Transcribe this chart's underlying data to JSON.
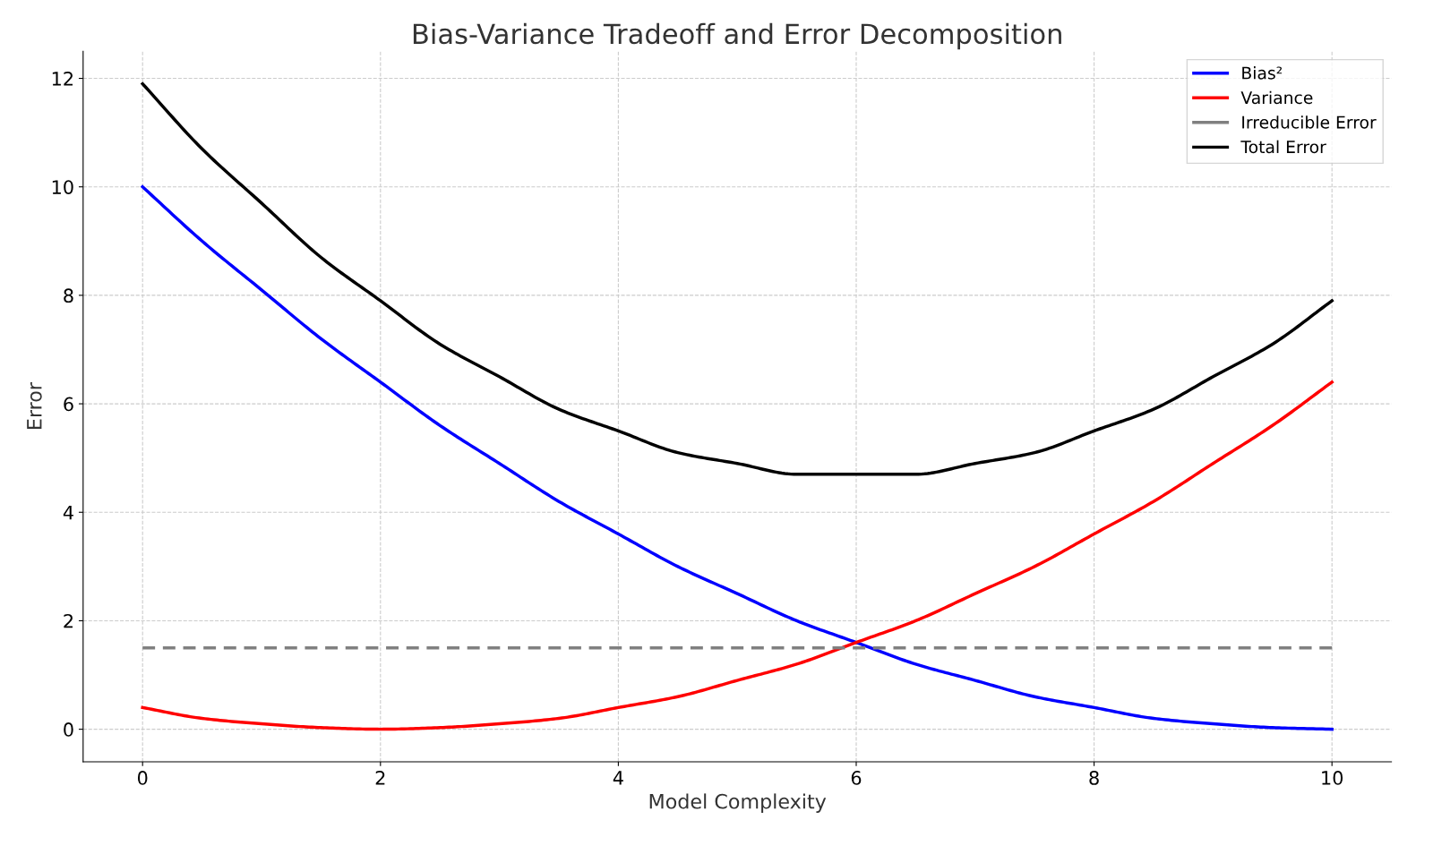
{
  "chart_data": {
    "type": "line",
    "title": "Bias-Variance Tradeoff and Error Decomposition",
    "xlabel": "Model Complexity",
    "ylabel": "Error",
    "x": [
      0,
      0.5,
      1,
      1.5,
      2,
      2.5,
      3,
      3.5,
      4,
      4.5,
      5,
      5.5,
      6,
      6.5,
      7,
      7.5,
      8,
      8.5,
      9,
      9.5,
      10
    ],
    "series": [
      {
        "name": "Bias²",
        "color": "#0000ff",
        "values": [
          10,
          9.0,
          8.1,
          7.2,
          6.4,
          5.6,
          4.9,
          4.2,
          3.6,
          3.0,
          2.5,
          2.0,
          1.6,
          1.2,
          0.9,
          0.6,
          0.4,
          0.2,
          0.1,
          0.03,
          0
        ]
      },
      {
        "name": "Variance",
        "color": "#ff0000",
        "values": [
          0.4,
          0.2,
          0.1,
          0.03,
          0,
          0.03,
          0.1,
          0.2,
          0.4,
          0.6,
          0.9,
          1.2,
          1.6,
          2.0,
          2.5,
          3.0,
          3.6,
          4.2,
          4.9,
          5.6,
          6.4
        ]
      },
      {
        "name": "Irreducible Error",
        "color": "#808080",
        "line_style": "dashed",
        "x": [
          0,
          10
        ],
        "values": [
          1.5,
          1.5
        ]
      },
      {
        "name": "Total Error",
        "color": "#000000",
        "values": [
          11.9,
          10.7,
          9.7,
          8.7,
          7.9,
          7.1,
          6.5,
          5.9,
          5.5,
          5.1,
          4.9,
          4.7,
          4.7,
          4.7,
          4.9,
          5.1,
          5.5,
          5.9,
          6.5,
          7.1,
          7.9
        ]
      }
    ],
    "xlim": [
      -0.5,
      10.5
    ],
    "xticks": [
      0,
      2,
      4,
      6,
      8,
      10
    ],
    "ylim": [
      -0.6,
      12.5
    ],
    "yticks": [
      0,
      2,
      4,
      6,
      8,
      10,
      12
    ],
    "grid": true,
    "legend": "top right",
    "line_style": "solid",
    "marker": "none"
  }
}
